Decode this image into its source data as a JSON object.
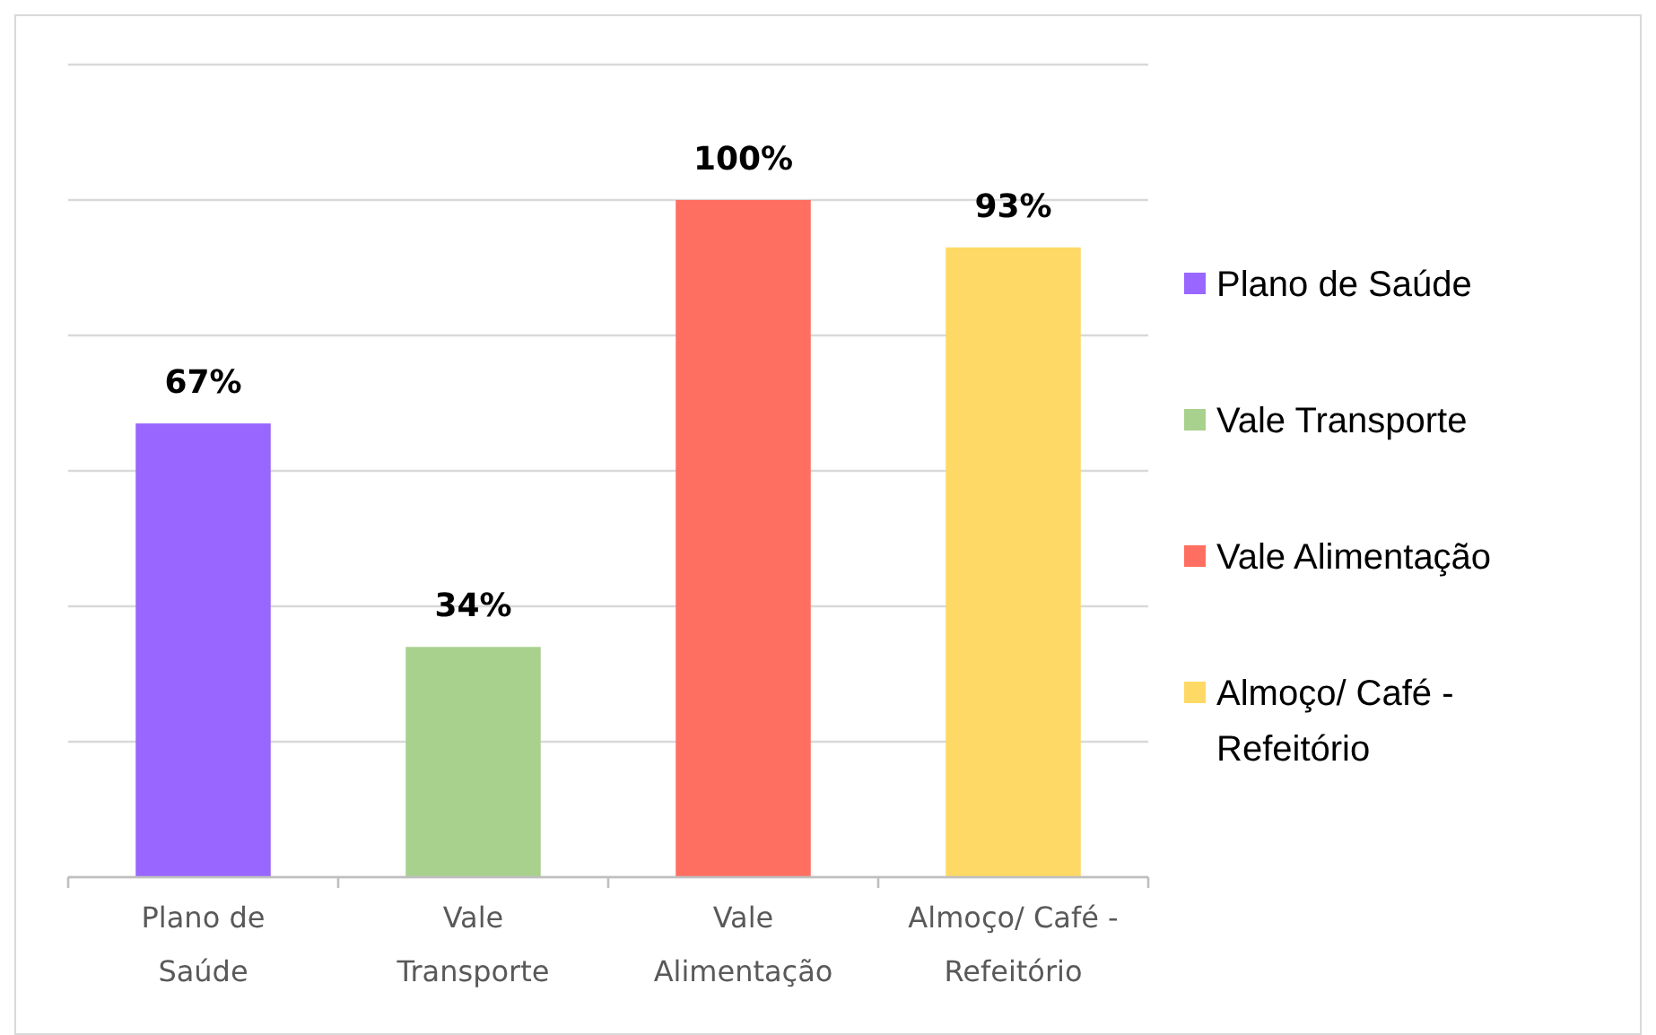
{
  "chart_data": {
    "type": "bar",
    "categories": [
      "Plano de Saúde",
      "Vale Transporte",
      "Vale Alimentação",
      "Almoço/ Café - Refeitório"
    ],
    "stacked": true,
    "series": [
      {
        "name": "Plano de Saúde",
        "color": "#9966ff",
        "values": [
          67,
          null,
          null,
          null
        ],
        "value_labels": [
          "67%",
          null,
          null,
          null
        ]
      },
      {
        "name": "Vale Transporte",
        "color": "#a9d18e",
        "values": [
          null,
          34,
          null,
          null
        ],
        "value_labels": [
          null,
          "34%",
          null,
          null
        ]
      },
      {
        "name": "Vale Alimentação",
        "color": "#ff6f61",
        "values": [
          null,
          null,
          100,
          null
        ],
        "value_labels": [
          null,
          null,
          "100%",
          null
        ]
      },
      {
        "name": "Almoço/ Café - Refeitório",
        "color": "#ffd966",
        "values": [
          null,
          null,
          null,
          93
        ],
        "value_labels": [
          null,
          null,
          null,
          "93%"
        ]
      }
    ],
    "ylim": [
      0,
      120
    ],
    "yticks": [
      {
        "value": 0,
        "label": null
      },
      {
        "value": 20,
        "label": null
      },
      {
        "value": 40,
        "label": null
      },
      {
        "value": 60,
        "label": null
      },
      {
        "value": 80,
        "label": null
      },
      {
        "value": 100,
        "label": null
      },
      {
        "value": 120,
        "label": null
      }
    ],
    "tick_labels": "x",
    "grid": "y",
    "legend": "right"
  }
}
